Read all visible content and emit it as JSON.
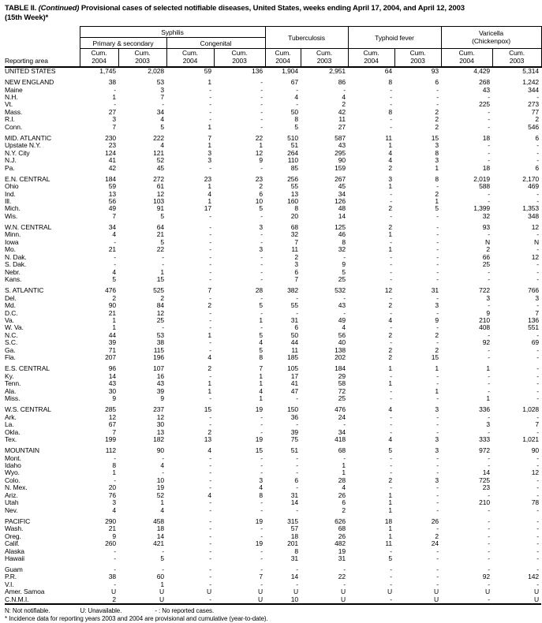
{
  "title": {
    "prefix": "TABLE II.",
    "continued": "(Continued)",
    "rest": "Provisional cases of selected notifiable diseases, United States, weeks ending April 17, 2004, and April 12, 2003",
    "line2": "(15th Week)*"
  },
  "header": {
    "reporting_area": "Reporting area",
    "cum_label": "Cum.",
    "years": [
      "2004",
      "2003"
    ],
    "groups": {
      "syphilis": "Syphilis",
      "primary_secondary": "Primary & secondary",
      "congenital": "Congenital",
      "tuberculosis": "Tuberculosis",
      "typhoid": "Typhoid fever",
      "varicella_line1": "Varicella",
      "varicella_line2": "(Chickenpox)"
    }
  },
  "sections": [
    {
      "rows": [
        [
          "UNITED STATES",
          "1,745",
          "2,028",
          "59",
          "136",
          "1,904",
          "2,951",
          "64",
          "93",
          "4,429",
          "5,314"
        ]
      ]
    },
    {
      "rows": [
        [
          "NEW ENGLAND",
          "38",
          "53",
          "1",
          "-",
          "67",
          "86",
          "8",
          "6",
          "268",
          "1,242"
        ],
        [
          "Maine",
          "-",
          "3",
          "-",
          "-",
          "-",
          "-",
          "-",
          "-",
          "43",
          "344"
        ],
        [
          "N.H.",
          "1",
          "7",
          "-",
          "-",
          "4",
          "4",
          "-",
          "-",
          "-",
          "-"
        ],
        [
          "Vt.",
          "-",
          "-",
          "-",
          "-",
          "-",
          "2",
          "-",
          "-",
          "225",
          "273"
        ],
        [
          "Mass.",
          "27",
          "34",
          "-",
          "-",
          "50",
          "42",
          "8",
          "2",
          "-",
          "77"
        ],
        [
          "R.I.",
          "3",
          "4",
          "-",
          "-",
          "8",
          "11",
          "-",
          "2",
          "-",
          "2"
        ],
        [
          "Conn.",
          "7",
          "5",
          "1",
          "-",
          "5",
          "27",
          "-",
          "2",
          "-",
          "546"
        ]
      ]
    },
    {
      "rows": [
        [
          "MID. ATLANTIC",
          "230",
          "222",
          "7",
          "22",
          "510",
          "587",
          "11",
          "15",
          "18",
          "6"
        ],
        [
          "Upstate N.Y.",
          "23",
          "4",
          "1",
          "1",
          "51",
          "43",
          "1",
          "3",
          "-",
          "-"
        ],
        [
          "N.Y. City",
          "124",
          "121",
          "3",
          "12",
          "264",
          "295",
          "4",
          "8",
          "-",
          "-"
        ],
        [
          "N.J.",
          "41",
          "52",
          "3",
          "9",
          "110",
          "90",
          "4",
          "3",
          "-",
          "-"
        ],
        [
          "Pa.",
          "42",
          "45",
          "-",
          "-",
          "85",
          "159",
          "2",
          "1",
          "18",
          "6"
        ]
      ]
    },
    {
      "rows": [
        [
          "E.N. CENTRAL",
          "184",
          "272",
          "23",
          "23",
          "256",
          "267",
          "3",
          "8",
          "2,019",
          "2,170"
        ],
        [
          "Ohio",
          "59",
          "61",
          "1",
          "2",
          "55",
          "45",
          "1",
          "-",
          "588",
          "469"
        ],
        [
          "Ind.",
          "13",
          "12",
          "4",
          "6",
          "13",
          "34",
          "-",
          "2",
          "-",
          "-"
        ],
        [
          "Ill.",
          "56",
          "103",
          "1",
          "10",
          "160",
          "126",
          "-",
          "1",
          "-",
          "-"
        ],
        [
          "Mich.",
          "49",
          "91",
          "17",
          "5",
          "8",
          "48",
          "2",
          "5",
          "1,399",
          "1,353"
        ],
        [
          "Wis.",
          "7",
          "5",
          "-",
          "-",
          "20",
          "14",
          "-",
          "-",
          "32",
          "348"
        ]
      ]
    },
    {
      "rows": [
        [
          "W.N. CENTRAL",
          "34",
          "64",
          "-",
          "3",
          "68",
          "125",
          "2",
          "-",
          "93",
          "12"
        ],
        [
          "Minn.",
          "4",
          "21",
          "-",
          "-",
          "32",
          "46",
          "1",
          "-",
          "-",
          "-"
        ],
        [
          "Iowa",
          "-",
          "5",
          "-",
          "-",
          "7",
          "8",
          "-",
          "-",
          "N",
          "N"
        ],
        [
          "Mo.",
          "21",
          "22",
          "-",
          "3",
          "11",
          "32",
          "1",
          "-",
          "2",
          "-"
        ],
        [
          "N. Dak.",
          "-",
          "-",
          "-",
          "-",
          "2",
          "-",
          "-",
          "-",
          "66",
          "12"
        ],
        [
          "S. Dak.",
          "-",
          "-",
          "-",
          "-",
          "3",
          "9",
          "-",
          "-",
          "25",
          "-"
        ],
        [
          "Nebr.",
          "4",
          "1",
          "-",
          "-",
          "6",
          "5",
          "-",
          "-",
          "-",
          "-"
        ],
        [
          "Kans.",
          "5",
          "15",
          "-",
          "-",
          "7",
          "25",
          "-",
          "-",
          "-",
          "-"
        ]
      ]
    },
    {
      "rows": [
        [
          "S. ATLANTIC",
          "476",
          "525",
          "7",
          "28",
          "382",
          "532",
          "12",
          "31",
          "722",
          "766"
        ],
        [
          "Del.",
          "2",
          "2",
          "-",
          "-",
          "-",
          "-",
          "-",
          "-",
          "3",
          "3"
        ],
        [
          "Md.",
          "90",
          "84",
          "2",
          "5",
          "55",
          "43",
          "2",
          "3",
          "-",
          "-"
        ],
        [
          "D.C.",
          "21",
          "12",
          "-",
          "-",
          "-",
          "-",
          "-",
          "-",
          "9",
          "7"
        ],
        [
          "Va.",
          "1",
          "25",
          "-",
          "1",
          "31",
          "49",
          "4",
          "9",
          "210",
          "136"
        ],
        [
          "W. Va.",
          "1",
          "-",
          "-",
          "-",
          "6",
          "4",
          "-",
          "-",
          "408",
          "551"
        ],
        [
          "N.C.",
          "44",
          "53",
          "1",
          "5",
          "50",
          "56",
          "2",
          "2",
          "-",
          "-"
        ],
        [
          "S.C.",
          "39",
          "38",
          "-",
          "4",
          "44",
          "40",
          "-",
          "-",
          "92",
          "69"
        ],
        [
          "Ga.",
          "71",
          "115",
          "-",
          "5",
          "11",
          "138",
          "2",
          "2",
          "-",
          "-"
        ],
        [
          "Fla.",
          "207",
          "196",
          "4",
          "8",
          "185",
          "202",
          "2",
          "15",
          "-",
          "-"
        ]
      ]
    },
    {
      "rows": [
        [
          "E.S. CENTRAL",
          "96",
          "107",
          "2",
          "7",
          "105",
          "184",
          "1",
          "1",
          "1",
          "-"
        ],
        [
          "Ky.",
          "14",
          "16",
          "-",
          "1",
          "17",
          "29",
          "-",
          "-",
          "-",
          "-"
        ],
        [
          "Tenn.",
          "43",
          "43",
          "1",
          "1",
          "41",
          "58",
          "1",
          "-",
          "-",
          "-"
        ],
        [
          "Ala.",
          "30",
          "39",
          "1",
          "4",
          "47",
          "72",
          "-",
          "1",
          "-",
          "-"
        ],
        [
          "Miss.",
          "9",
          "9",
          "-",
          "1",
          "-",
          "25",
          "-",
          "-",
          "1",
          "-"
        ]
      ]
    },
    {
      "rows": [
        [
          "W.S. CENTRAL",
          "285",
          "237",
          "15",
          "19",
          "150",
          "476",
          "4",
          "3",
          "336",
          "1,028"
        ],
        [
          "Ark.",
          "12",
          "12",
          "-",
          "-",
          "36",
          "24",
          "-",
          "-",
          "-",
          "-"
        ],
        [
          "La.",
          "67",
          "30",
          "-",
          "-",
          "-",
          "-",
          "-",
          "-",
          "3",
          "7"
        ],
        [
          "Okla.",
          "7",
          "13",
          "2",
          "-",
          "39",
          "34",
          "-",
          "-",
          "-",
          "-"
        ],
        [
          "Tex.",
          "199",
          "182",
          "13",
          "19",
          "75",
          "418",
          "4",
          "3",
          "333",
          "1,021"
        ]
      ]
    },
    {
      "rows": [
        [
          "MOUNTAIN",
          "112",
          "90",
          "4",
          "15",
          "51",
          "68",
          "5",
          "3",
          "972",
          "90"
        ],
        [
          "Mont.",
          "-",
          "-",
          "-",
          "-",
          "-",
          "-",
          "-",
          "-",
          "-",
          "-"
        ],
        [
          "Idaho",
          "8",
          "4",
          "-",
          "-",
          "-",
          "1",
          "-",
          "-",
          "-",
          "-"
        ],
        [
          "Wyo.",
          "1",
          "-",
          "-",
          "-",
          "-",
          "1",
          "-",
          "-",
          "14",
          "12"
        ],
        [
          "Colo.",
          "-",
          "10",
          "-",
          "3",
          "6",
          "28",
          "2",
          "3",
          "725",
          "-"
        ],
        [
          "N. Mex.",
          "20",
          "19",
          "-",
          "4",
          "-",
          "4",
          "-",
          "-",
          "23",
          "-"
        ],
        [
          "Ariz.",
          "76",
          "52",
          "4",
          "8",
          "31",
          "26",
          "1",
          "-",
          "-",
          "-"
        ],
        [
          "Utah",
          "3",
          "1",
          "-",
          "-",
          "14",
          "6",
          "1",
          "-",
          "210",
          "78"
        ],
        [
          "Nev.",
          "4",
          "4",
          "-",
          "-",
          "-",
          "2",
          "1",
          "-",
          "-",
          "-"
        ]
      ]
    },
    {
      "rows": [
        [
          "PACIFIC",
          "290",
          "458",
          "-",
          "19",
          "315",
          "626",
          "18",
          "26",
          "-",
          "-"
        ],
        [
          "Wash.",
          "21",
          "18",
          "-",
          "-",
          "57",
          "68",
          "1",
          "-",
          "-",
          "-"
        ],
        [
          "Oreg.",
          "9",
          "14",
          "-",
          "-",
          "18",
          "26",
          "1",
          "2",
          "-",
          "-"
        ],
        [
          "Calif.",
          "260",
          "421",
          "-",
          "19",
          "201",
          "482",
          "11",
          "24",
          "-",
          "-"
        ],
        [
          "Alaska",
          "-",
          "-",
          "-",
          "-",
          "8",
          "19",
          "-",
          "-",
          "-",
          "-"
        ],
        [
          "Hawaii",
          "-",
          "5",
          "-",
          "-",
          "31",
          "31",
          "5",
          "-",
          "-",
          "-"
        ]
      ]
    },
    {
      "rows": [
        [
          "Guam",
          "-",
          "-",
          "-",
          "-",
          "-",
          "-",
          "-",
          "-",
          "-",
          "-"
        ],
        [
          "P.R.",
          "38",
          "60",
          "-",
          "7",
          "14",
          "22",
          "-",
          "-",
          "92",
          "142"
        ],
        [
          "V.I.",
          "-",
          "1",
          "-",
          "-",
          "-",
          "-",
          "-",
          "-",
          "-",
          "-"
        ],
        [
          "Amer. Samoa",
          "U",
          "U",
          "U",
          "U",
          "U",
          "U",
          "U",
          "U",
          "U",
          "U"
        ],
        [
          "C.N.M.I.",
          "2",
          "U",
          "-",
          "U",
          "10",
          "U",
          "-",
          "U",
          "-",
          "U"
        ]
      ]
    }
  ],
  "footnotes": {
    "not_notifiable": "N: Not notifiable.",
    "unavailable": "U: Unavailable.",
    "no_reported": "- : No reported cases.",
    "incidence_note": "* Incidence data for reporting years 2003 and 2004 are provisional and cumulative (year-to-date)."
  }
}
